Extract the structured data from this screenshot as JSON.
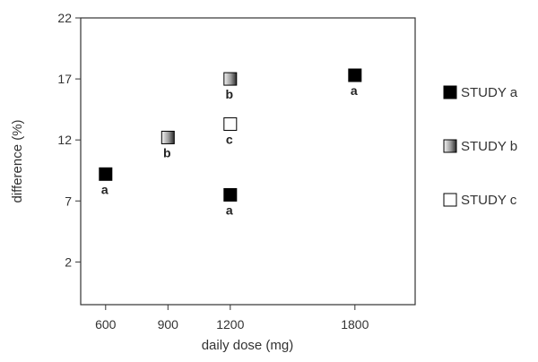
{
  "chart_data": {
    "type": "scatter",
    "xlabel": "daily dose (mg)",
    "ylabel": "difference (%)",
    "xlim": [
      480,
      2090
    ],
    "ylim": [
      -1.5,
      22
    ],
    "x_ticks": [
      600,
      900,
      1200,
      1800
    ],
    "y_ticks": [
      2,
      7,
      12,
      17,
      22
    ],
    "grid": false,
    "legend_position": "right",
    "series": [
      {
        "name": "STUDY a",
        "marker": "black",
        "point_label": "a",
        "points": [
          {
            "x": 600,
            "y": 9.2
          },
          {
            "x": 1200,
            "y": 7.5
          },
          {
            "x": 1800,
            "y": 17.3
          }
        ]
      },
      {
        "name": "STUDY b",
        "marker": "gradient",
        "point_label": "b",
        "points": [
          {
            "x": 900,
            "y": 12.2
          },
          {
            "x": 1200,
            "y": 17.0
          }
        ]
      },
      {
        "name": "STUDY c",
        "marker": "white",
        "point_label": "c",
        "points": [
          {
            "x": 1200,
            "y": 13.3
          }
        ]
      }
    ]
  }
}
